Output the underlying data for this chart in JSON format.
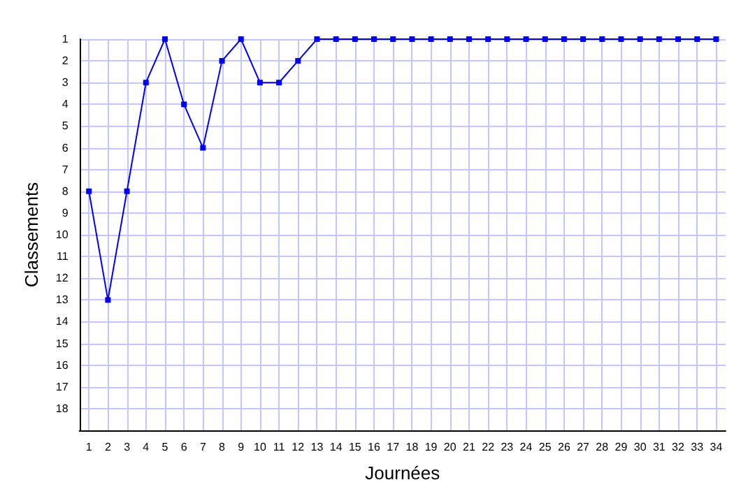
{
  "chart_data": {
    "type": "line",
    "xlabel": "Journées",
    "ylabel": "Classements",
    "x": [
      1,
      2,
      3,
      4,
      5,
      6,
      7,
      8,
      9,
      10,
      11,
      12,
      13,
      14,
      15,
      16,
      17,
      18,
      19,
      20,
      21,
      22,
      23,
      24,
      25,
      26,
      27,
      28,
      29,
      30,
      31,
      32,
      33,
      34
    ],
    "series": [
      {
        "color": "#0000ff",
        "values": [
          8,
          13,
          8,
          3,
          1,
          4,
          6,
          2,
          1,
          3,
          3,
          2,
          1,
          1,
          1,
          1,
          1,
          1,
          1,
          1,
          1,
          1,
          1,
          1,
          1,
          1,
          1,
          1,
          1,
          1,
          1,
          1,
          1,
          1
        ]
      }
    ],
    "xlim": [
      0.5,
      34.5
    ],
    "xticks": [
      1,
      2,
      3,
      4,
      5,
      6,
      7,
      8,
      9,
      10,
      11,
      12,
      13,
      14,
      15,
      16,
      17,
      18,
      19,
      20,
      21,
      22,
      23,
      24,
      25,
      26,
      27,
      28,
      29,
      30,
      31,
      32,
      33,
      34
    ],
    "ylim": [
      19,
      1
    ],
    "yticks": [
      1,
      2,
      3,
      4,
      5,
      6,
      7,
      8,
      9,
      10,
      11,
      12,
      13,
      14,
      15,
      16,
      17,
      18
    ],
    "grid": true,
    "marker": "square",
    "line_style": "solid"
  }
}
